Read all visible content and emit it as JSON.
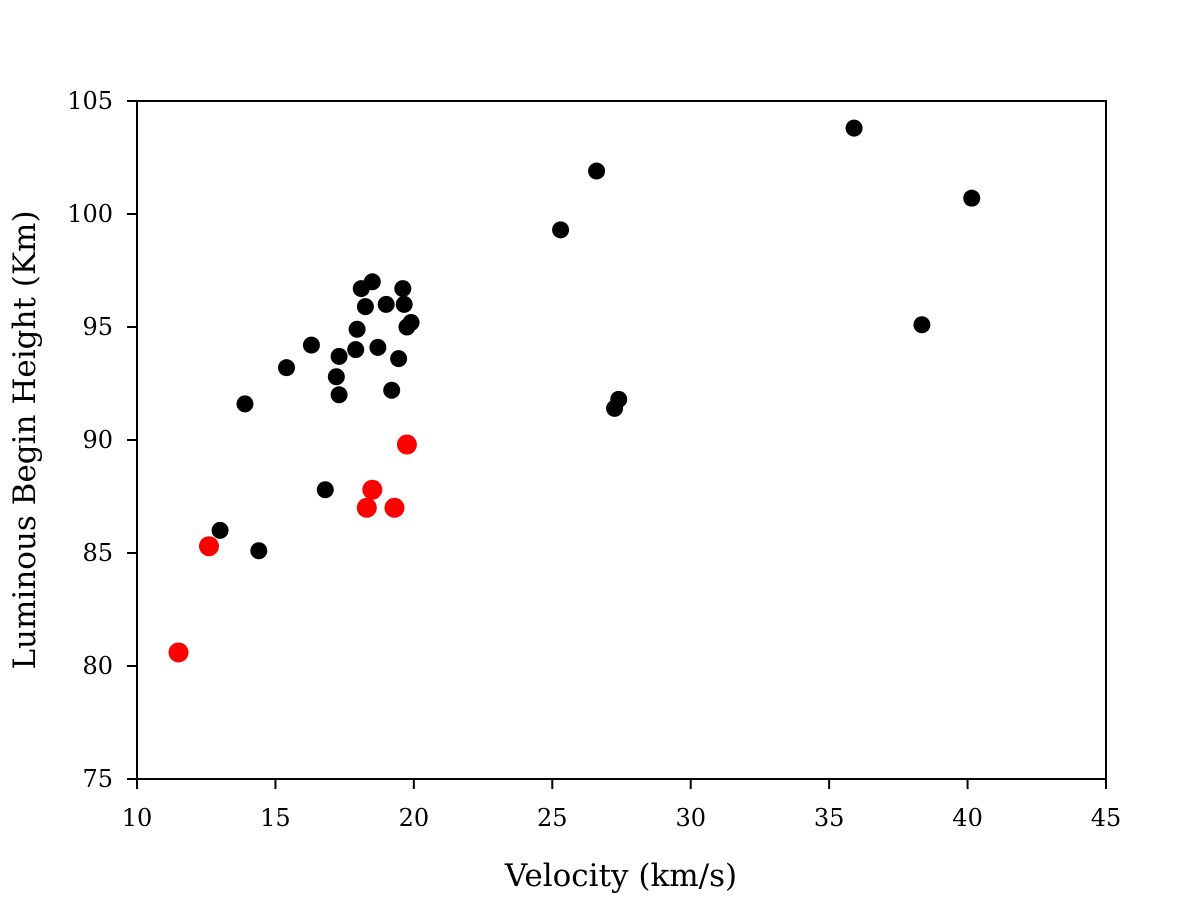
{
  "chart_data": {
    "type": "scatter",
    "title": "",
    "xlabel": "Velocity (km/s)",
    "ylabel": "Luminous Begin Height (Km)",
    "xlim": [
      10,
      45
    ],
    "ylim": [
      75,
      105
    ],
    "xticks": [
      10,
      15,
      20,
      25,
      30,
      35,
      40,
      45
    ],
    "yticks": [
      75,
      80,
      85,
      90,
      95,
      100,
      105
    ],
    "grid": false,
    "series": [
      {
        "name": "black",
        "color": "#000000",
        "points": [
          {
            "x": 13.0,
            "y": 86.0
          },
          {
            "x": 13.9,
            "y": 91.6
          },
          {
            "x": 14.4,
            "y": 85.1
          },
          {
            "x": 15.4,
            "y": 93.2
          },
          {
            "x": 16.3,
            "y": 94.2
          },
          {
            "x": 16.8,
            "y": 87.8
          },
          {
            "x": 17.2,
            "y": 92.8
          },
          {
            "x": 17.3,
            "y": 93.7
          },
          {
            "x": 17.3,
            "y": 92.0
          },
          {
            "x": 17.9,
            "y": 94.0
          },
          {
            "x": 17.95,
            "y": 94.9
          },
          {
            "x": 18.1,
            "y": 96.7
          },
          {
            "x": 18.25,
            "y": 95.9
          },
          {
            "x": 18.5,
            "y": 97.0
          },
          {
            "x": 18.7,
            "y": 94.1
          },
          {
            "x": 19.0,
            "y": 96.0
          },
          {
            "x": 19.2,
            "y": 92.2
          },
          {
            "x": 19.45,
            "y": 93.6
          },
          {
            "x": 19.6,
            "y": 96.7
          },
          {
            "x": 19.65,
            "y": 96.0
          },
          {
            "x": 19.75,
            "y": 95.0
          },
          {
            "x": 19.9,
            "y": 95.2
          },
          {
            "x": 25.3,
            "y": 99.3
          },
          {
            "x": 26.6,
            "y": 101.9
          },
          {
            "x": 27.25,
            "y": 91.4
          },
          {
            "x": 27.4,
            "y": 91.8
          },
          {
            "x": 35.9,
            "y": 103.8
          },
          {
            "x": 38.35,
            "y": 95.1
          },
          {
            "x": 40.15,
            "y": 100.7
          }
        ]
      },
      {
        "name": "red",
        "color": "#ff0000",
        "points": [
          {
            "x": 11.5,
            "y": 80.6
          },
          {
            "x": 12.6,
            "y": 85.3
          },
          {
            "x": 18.3,
            "y": 87.0
          },
          {
            "x": 18.5,
            "y": 87.8
          },
          {
            "x": 19.3,
            "y": 87.0
          },
          {
            "x": 19.75,
            "y": 89.8
          }
        ]
      }
    ]
  }
}
